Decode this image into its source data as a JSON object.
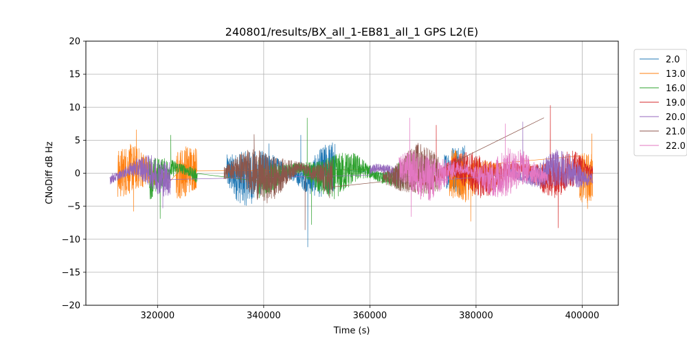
{
  "chart_data": {
    "type": "line",
    "title": "240801/results/BX_all_1-EB81_all_1 GPS L2(E)",
    "xlabel": "Time (s)",
    "ylabel": "CNoDiff dB Hz",
    "xlim": [
      306500,
      406800
    ],
    "ylim": [
      -20,
      20
    ],
    "xticks": [
      320000,
      340000,
      360000,
      380000,
      400000
    ],
    "xtick_labels": [
      "320000",
      "340000",
      "360000",
      "380000",
      "400000"
    ],
    "yticks": [
      -20,
      -15,
      -10,
      -5,
      0,
      5,
      10,
      15,
      20
    ],
    "ytick_labels": [
      "−20",
      "−15",
      "−10",
      "−5",
      "0",
      "5",
      "10",
      "15",
      "20"
    ],
    "grid": true,
    "legend_position": "outside-top-right",
    "series": [
      {
        "name": "2.0",
        "color": "#1f77b4",
        "segments": [
          [
            333000,
            353500
          ],
          [
            374000,
            378000
          ]
        ],
        "amplitude": 3.2,
        "spikes": [
          {
            "x": 348300,
            "y": -11.2
          },
          {
            "x": 347000,
            "y": 5.8
          },
          {
            "x": 341000,
            "y": 4.5
          }
        ]
      },
      {
        "name": "13.0",
        "color": "#ff7f0e",
        "segments": [
          [
            312500,
            322000
          ],
          [
            323500,
            327500
          ],
          [
            375000,
            384000
          ],
          [
            399500,
            402000
          ]
        ],
        "amplitude": 3.0,
        "spikes": [
          {
            "x": 316000,
            "y": 6.6
          },
          {
            "x": 315500,
            "y": -5.8
          },
          {
            "x": 379000,
            "y": -7.3
          },
          {
            "x": 401000,
            "y": -5.4
          },
          {
            "x": 401800,
            "y": 6.0
          }
        ]
      },
      {
        "name": "16.0",
        "color": "#2ca02c",
        "segments": [
          [
            318500,
            327500
          ],
          [
            339000,
            366500
          ]
        ],
        "amplitude": 2.6,
        "spikes": [
          {
            "x": 320500,
            "y": -6.9
          },
          {
            "x": 348200,
            "y": 8.4
          },
          {
            "x": 349000,
            "y": -7.8
          },
          {
            "x": 322500,
            "y": 5.8
          }
        ]
      },
      {
        "name": "19.0",
        "color": "#d62728",
        "segments": [
          [
            368000,
            402000
          ]
        ],
        "amplitude": 2.5,
        "spikes": [
          {
            "x": 394000,
            "y": 10.3
          },
          {
            "x": 395500,
            "y": -8.3
          },
          {
            "x": 372500,
            "y": 7.3
          }
        ]
      },
      {
        "name": "20.0",
        "color": "#9467bd",
        "segments": [
          [
            311000,
            322500
          ],
          [
            360000,
            366000
          ],
          [
            386000,
            402000
          ]
        ],
        "amplitude": 2.2,
        "spikes": [
          {
            "x": 388800,
            "y": 7.8
          },
          {
            "x": 321000,
            "y": -5.3
          }
        ]
      },
      {
        "name": "21.0",
        "color": "#8c564b",
        "segments": [
          [
            332500,
            353000
          ],
          [
            362500,
            373000
          ]
        ],
        "amplitude": 3.0,
        "spikes": [
          {
            "x": 347800,
            "y": -8.6
          },
          {
            "x": 338200,
            "y": 5.9
          },
          {
            "x": 392800,
            "y": 8.4
          }
        ]
      },
      {
        "name": "22.0",
        "color": "#e377c2",
        "segments": [
          [
            365500,
            393500
          ]
        ],
        "amplitude": 2.8,
        "spikes": [
          {
            "x": 367500,
            "y": 8.4
          },
          {
            "x": 367800,
            "y": -6.6
          },
          {
            "x": 385500,
            "y": 7.5
          }
        ]
      }
    ]
  }
}
